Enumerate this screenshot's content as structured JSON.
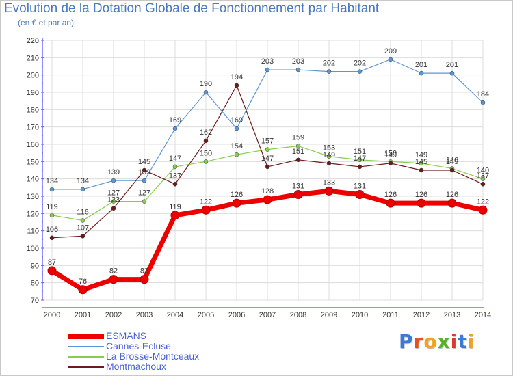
{
  "title": "Evolution de la Dotation Globale de Fonctionnement par Habitant",
  "subtitle": "(en € et par an)",
  "brand": {
    "text": "Proxiti",
    "letter_colors": [
      "#3a7bd5",
      "#e8501f",
      "#f2a31b",
      "#58b031",
      "#d93a2a",
      "#3a7bd5",
      "#f2a31b"
    ]
  },
  "chart_data": {
    "type": "line",
    "title": "Evolution de la Dotation Globale de Fonctionnement par Habitant",
    "subtitle": "(en € et par an)",
    "xlabel": "",
    "ylabel": "",
    "ylim": [
      70,
      220
    ],
    "yticks": [
      70,
      80,
      90,
      100,
      110,
      120,
      130,
      140,
      150,
      160,
      170,
      180,
      190,
      200,
      210,
      220
    ],
    "grid": true,
    "legend_position": "bottom-left",
    "categories": [
      "2000",
      "2001",
      "2002",
      "2003",
      "2004",
      "2005",
      "2006",
      "2007",
      "2008",
      "2009",
      "2010",
      "2011",
      "2012",
      "2013",
      "2014"
    ],
    "series": [
      {
        "name": "Cannes-Ecluse",
        "color": "#5b96d6",
        "values": [
          134,
          134,
          139,
          139,
          169,
          190,
          169,
          203,
          203,
          202,
          202,
          209,
          201,
          201,
          184
        ]
      },
      {
        "name": "La Brosse-Montceaux",
        "color": "#86cd4e",
        "values": [
          119,
          116,
          127,
          127,
          147,
          150,
          154,
          157,
          159,
          153,
          151,
          150,
          149,
          146,
          140
        ]
      },
      {
        "name": "Montmachoux",
        "color": "#6e1a1a",
        "values": [
          106,
          107,
          123,
          145,
          137,
          162,
          194,
          147,
          151,
          149,
          147,
          149,
          145,
          145,
          137
        ]
      },
      {
        "name": "ESMANS",
        "color": "#ee0000",
        "values": [
          87,
          76,
          82,
          82,
          119,
          122,
          126,
          128,
          131,
          133,
          131,
          126,
          126,
          126,
          122
        ]
      }
    ]
  }
}
